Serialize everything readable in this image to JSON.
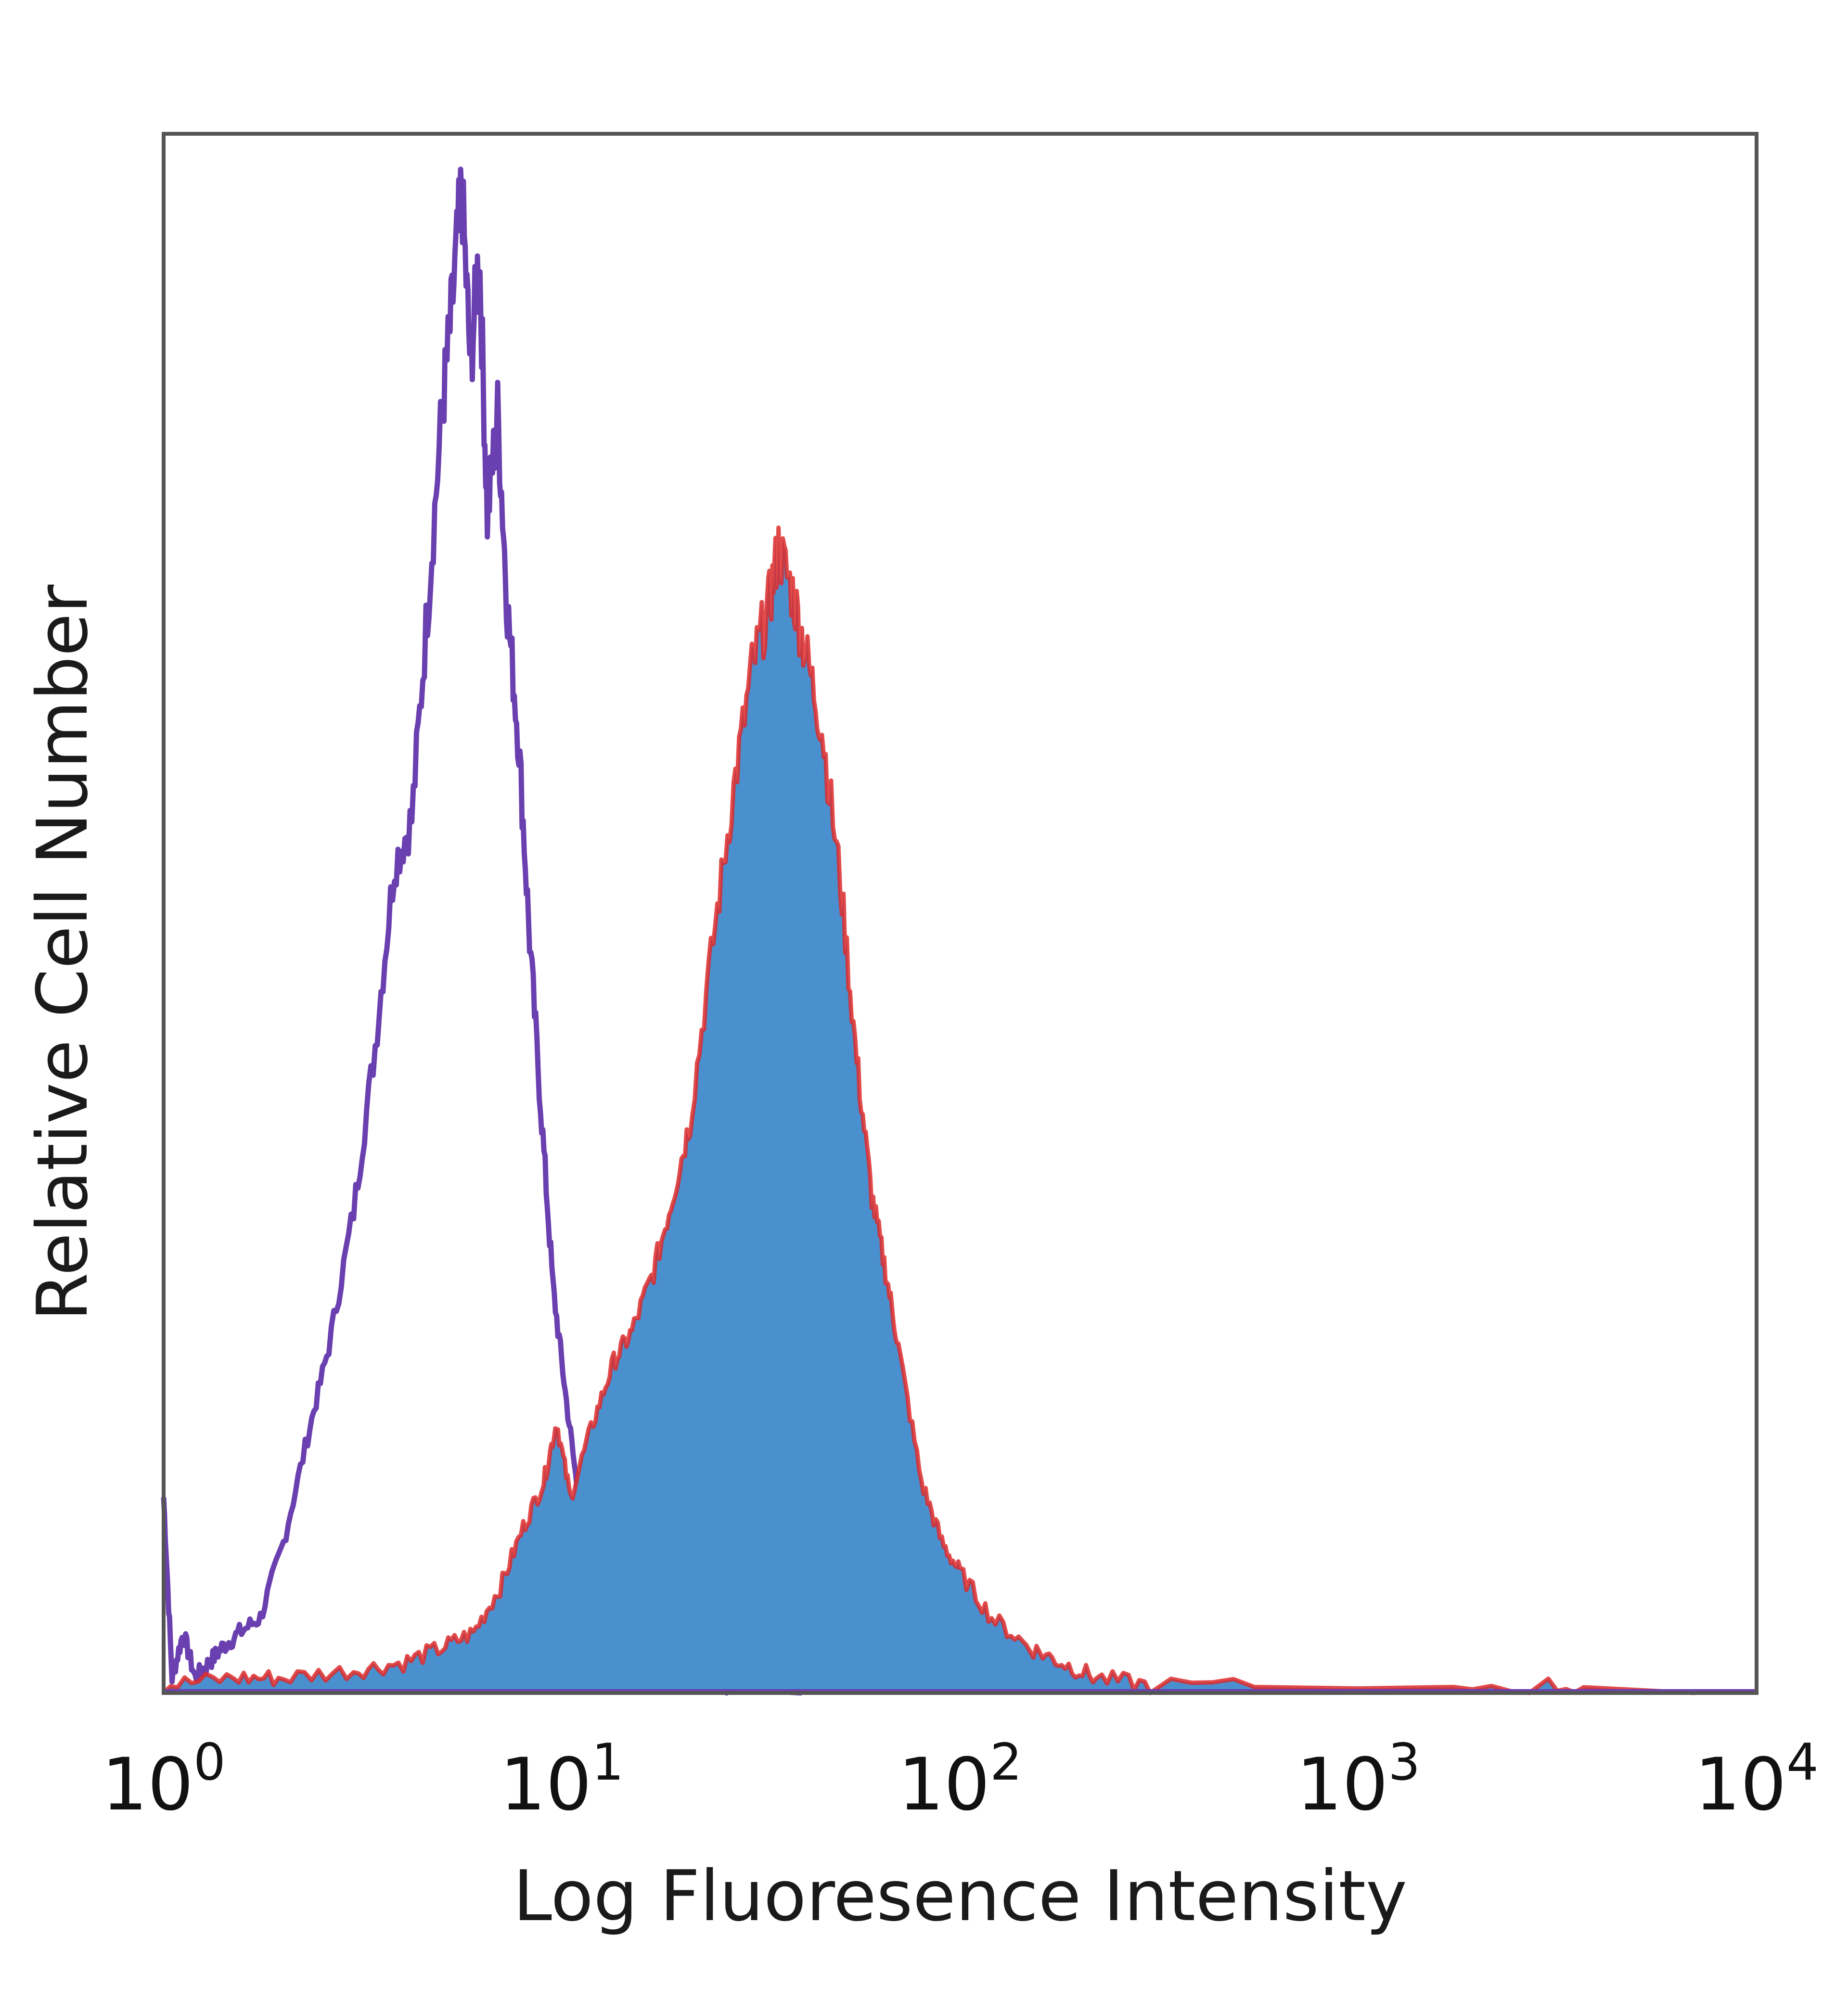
{
  "chart_data": {
    "type": "area",
    "title": "",
    "xlabel": "Log Fluoresence Intensity",
    "ylabel": "Relative Cell Number",
    "xscale": "log",
    "xlim": [
      1,
      10000
    ],
    "ylim": [
      0,
      100
    ],
    "grid": false,
    "legend": "none",
    "x_ticks": [
      {
        "base": "10",
        "exp": "0",
        "value": 1
      },
      {
        "base": "10",
        "exp": "1",
        "value": 10
      },
      {
        "base": "10",
        "exp": "2",
        "value": 100
      },
      {
        "base": "10",
        "exp": "3",
        "value": 1000
      },
      {
        "base": "10",
        "exp": "4",
        "value": 10000
      }
    ],
    "series": [
      {
        "style": "outline",
        "color": "#6a3fb0",
        "x": [
          1.0,
          1.05,
          1.12,
          1.2,
          1.3,
          1.4,
          1.55,
          1.75,
          2.0,
          2.3,
          2.6,
          3.0,
          3.4,
          3.8,
          4.2,
          4.6,
          5.0,
          5.3,
          5.6,
          5.9,
          6.2,
          6.5,
          6.9,
          7.3,
          7.8,
          8.3,
          8.9,
          9.5,
          10.2,
          11.0,
          12.0,
          13.0,
          14.5,
          16.0,
          18.0,
          20.0,
          22.0,
          25.0,
          30.0,
          40.0
        ],
        "y": [
          13,
          1,
          4,
          1,
          2,
          3,
          4,
          5,
          10,
          17,
          23,
          32,
          43,
          55,
          58,
          72,
          85,
          92,
          100,
          88,
          96,
          78,
          85,
          72,
          63,
          50,
          38,
          27,
          20,
          13,
          9,
          6,
          5,
          4,
          3,
          2,
          1,
          0.5,
          0.2,
          0
        ]
      },
      {
        "style": "filled",
        "color": "#4a8fce",
        "edge_color": "#dd2a2a",
        "x": [
          1.0,
          1.5,
          2.0,
          3.0,
          4.0,
          5.0,
          6.0,
          7.0,
          8.0,
          9.0,
          9.7,
          10.5,
          12.0,
          13.5,
          15.0,
          17.0,
          19.0,
          21.0,
          24.0,
          27.0,
          30.0,
          33.0,
          35.0,
          38.0,
          41.0,
          45.0,
          50.0,
          55.0,
          60.0,
          65.0,
          70.0,
          80.0,
          90.0,
          100.0,
          120.0,
          150.0,
          180.0,
          220.0,
          300.0,
          1000.0,
          3000.0,
          5000.0,
          7000.0
        ],
        "y": [
          0.5,
          1,
          1,
          1.5,
          2,
          3,
          4,
          7,
          11,
          14,
          18,
          13,
          18,
          22,
          24,
          28,
          33,
          38,
          50,
          60,
          68,
          72,
          76,
          73,
          69,
          64,
          54,
          42,
          33,
          28,
          23,
          14,
          10,
          8,
          5,
          3,
          2,
          1,
          0.5,
          0.3,
          0.5,
          0.2,
          0
        ]
      }
    ]
  }
}
